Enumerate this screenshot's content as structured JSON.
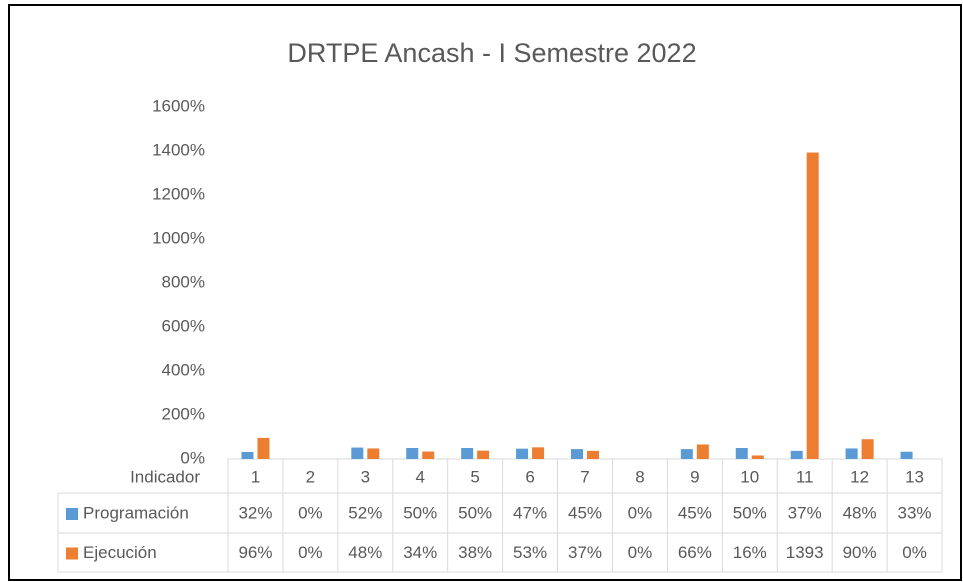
{
  "chart_data": {
    "type": "bar",
    "title": "DRTPE Ancash - I Semestre 2022",
    "table_header": "Indicador",
    "categories": [
      "1",
      "2",
      "3",
      "4",
      "5",
      "6",
      "7",
      "8",
      "9",
      "10",
      "11",
      "12",
      "13"
    ],
    "series": [
      {
        "name": "Programación",
        "color": "#5b9bd5",
        "values": [
          32,
          0,
          52,
          50,
          50,
          47,
          45,
          0,
          45,
          50,
          37,
          48,
          33
        ],
        "value_labels": [
          "32%",
          "0%",
          "52%",
          "50%",
          "50%",
          "47%",
          "45%",
          "0%",
          "45%",
          "50%",
          "37%",
          "48%",
          "33%"
        ]
      },
      {
        "name": "Ejecución",
        "color": "#ed7d31",
        "values": [
          96,
          0,
          48,
          34,
          38,
          53,
          37,
          0,
          66,
          16,
          1393,
          90,
          0
        ],
        "value_labels": [
          "96%",
          "0%",
          "48%",
          "34%",
          "38%",
          "53%",
          "37%",
          "0%",
          "66%",
          "16%",
          "1393",
          "90%",
          "0%"
        ]
      }
    ],
    "ylim": [
      0,
      1600
    ],
    "yticks": [
      {
        "value": 0,
        "label": "0%"
      },
      {
        "value": 200,
        "label": "200%"
      },
      {
        "value": 400,
        "label": "400%"
      },
      {
        "value": 600,
        "label": "600%"
      },
      {
        "value": 800,
        "label": "800%"
      },
      {
        "value": 1000,
        "label": "1000%"
      },
      {
        "value": 1200,
        "label": "1200%"
      },
      {
        "value": 1400,
        "label": "1400%"
      },
      {
        "value": 1600,
        "label": "1600%"
      }
    ]
  }
}
